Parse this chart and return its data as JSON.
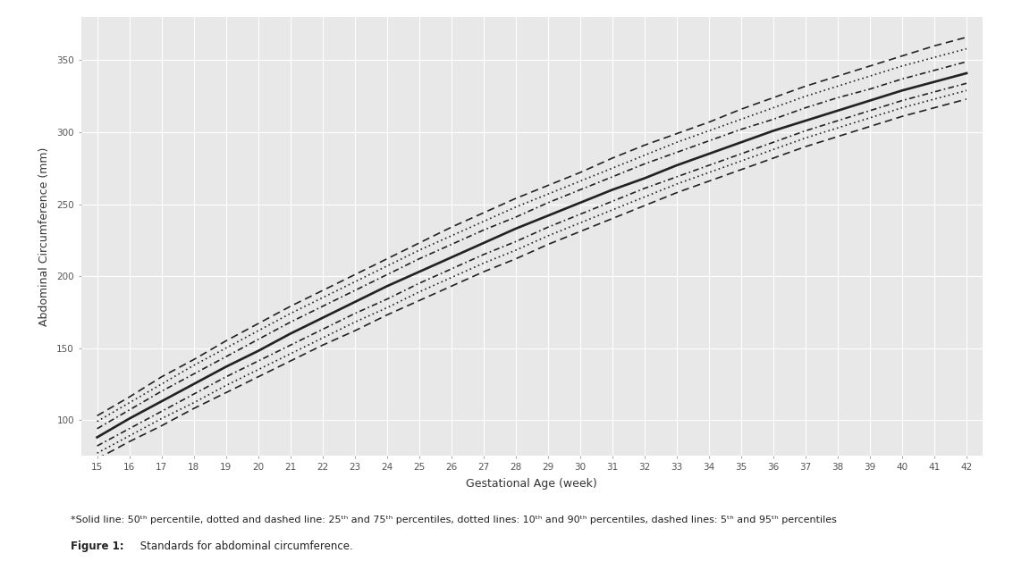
{
  "weeks": [
    15,
    16,
    17,
    18,
    19,
    20,
    21,
    22,
    23,
    24,
    25,
    26,
    27,
    28,
    29,
    30,
    31,
    32,
    33,
    34,
    35,
    36,
    37,
    38,
    39,
    40,
    41,
    42
  ],
  "p50": [
    88,
    101,
    113,
    125,
    137,
    148,
    160,
    171,
    182,
    193,
    203,
    213,
    223,
    233,
    242,
    251,
    260,
    268,
    277,
    285,
    293,
    301,
    308,
    315,
    322,
    329,
    335,
    341
  ],
  "p25": [
    82,
    94,
    106,
    118,
    130,
    141,
    152,
    163,
    174,
    184,
    195,
    205,
    215,
    224,
    234,
    243,
    252,
    261,
    269,
    277,
    285,
    293,
    301,
    308,
    315,
    322,
    328,
    334
  ],
  "p75": [
    94,
    107,
    120,
    132,
    144,
    156,
    168,
    179,
    190,
    201,
    212,
    222,
    232,
    241,
    251,
    260,
    269,
    278,
    286,
    294,
    302,
    309,
    317,
    324,
    330,
    337,
    343,
    349
  ],
  "p10": [
    77,
    89,
    101,
    112,
    124,
    135,
    146,
    157,
    168,
    178,
    189,
    199,
    209,
    218,
    228,
    237,
    246,
    255,
    264,
    272,
    280,
    288,
    296,
    303,
    310,
    317,
    323,
    329
  ],
  "p90": [
    99,
    112,
    125,
    138,
    150,
    162,
    174,
    185,
    196,
    207,
    218,
    228,
    238,
    248,
    257,
    266,
    275,
    284,
    293,
    301,
    309,
    317,
    325,
    332,
    339,
    346,
    352,
    358
  ],
  "p5": [
    73,
    85,
    96,
    108,
    119,
    130,
    141,
    152,
    162,
    173,
    183,
    193,
    203,
    212,
    222,
    231,
    240,
    249,
    258,
    266,
    274,
    282,
    290,
    297,
    304,
    311,
    317,
    323
  ],
  "p95": [
    103,
    116,
    130,
    142,
    155,
    167,
    179,
    190,
    201,
    212,
    223,
    234,
    244,
    254,
    263,
    272,
    282,
    291,
    299,
    307,
    316,
    324,
    332,
    339,
    346,
    353,
    360,
    366
  ],
  "bg_color": "#e8e8e8",
  "line_color": "#222222",
  "grid_color": "#ffffff",
  "ylabel": "Abdominal Circumference (mm)",
  "xlabel": "Gestational Age (week)",
  "yticks": [
    100,
    150,
    200,
    250,
    300,
    350
  ],
  "ylim": [
    75,
    380
  ],
  "xlim": [
    14.5,
    42.5
  ],
  "xticks": [
    15,
    16,
    17,
    18,
    19,
    20,
    21,
    22,
    23,
    24,
    25,
    26,
    27,
    28,
    29,
    30,
    31,
    32,
    33,
    34,
    35,
    36,
    37,
    38,
    39,
    40,
    41,
    42
  ],
  "caption_line1": "*Solid line: 50th percentile, dotted and dashed line: 25th and 75th percentiles, dotted lines: 10th and 90th percentiles, dashed lines: 5th and 95th percentiles",
  "caption_line2": "Standards for abdominal circumference."
}
